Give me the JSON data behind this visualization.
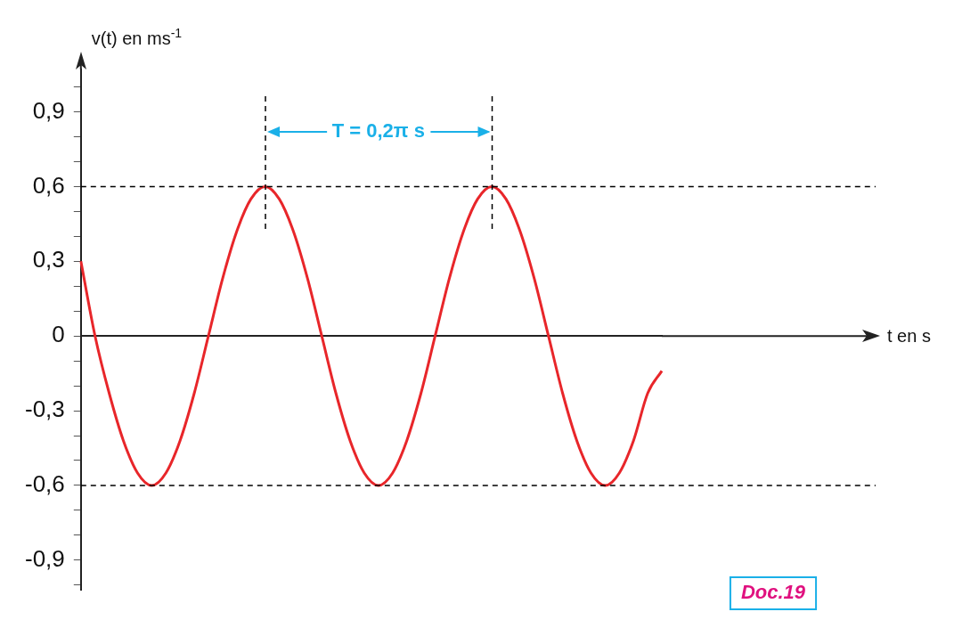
{
  "chart_data": {
    "type": "line",
    "ylabel": "v(t) en ms$^{-1}$",
    "categories": [
      null,
      null,
      null,
      null,
      null,
      null,
      null,
      null,
      null,
      null,
      null,
      null,
      null,
      null,
      null,
      null,
      null,
      null,
      null,
      null,
      null,
      null,
      null,
      null,
      null,
      null,
      null,
      null,
      null,
      null,
      null,
      null,
      null,
      null,
      null,
      null,
      null,
      null,
      null,
      null,
      null,
      null
    ],
    "series": [
      {
        "color": "#e8262a",
        "values": [
          0.3,
          0,
          -0.23,
          -0.42,
          -0.55,
          -0.6,
          -0.55,
          -0.42,
          -0.23,
          0,
          0.23,
          0.42,
          0.55,
          0.6,
          0.55,
          0.42,
          0.23,
          0,
          -0.23,
          -0.42,
          -0.55,
          -0.6,
          -0.55,
          -0.42,
          -0.23,
          0,
          0.23,
          0.42,
          0.55,
          0.6,
          0.55,
          0.42,
          0.23,
          0,
          -0.23,
          -0.42,
          -0.55,
          -0.6,
          -0.55,
          -0.42,
          -0.23,
          -0.14
        ]
      }
    ],
    "ylim": [
      -1.02,
      1.07
    ],
    "yticks": [
      {
        "value": -1.0,
        "label": null
      },
      {
        "value": -0.9,
        "label": "-0,9"
      },
      {
        "value": -0.8,
        "label": null
      },
      {
        "value": -0.7,
        "label": null
      },
      {
        "value": -0.6,
        "label": "-0,6"
      },
      {
        "value": -0.5,
        "label": null
      },
      {
        "value": -0.4,
        "label": null
      },
      {
        "value": -0.3,
        "label": "-0,3"
      },
      {
        "value": -0.2,
        "label": null
      },
      {
        "value": -0.1,
        "label": null
      },
      {
        "value": 0,
        "label": "0"
      },
      {
        "value": 0.1,
        "label": null
      },
      {
        "value": 0.2,
        "label": null
      },
      {
        "value": 0.3,
        "label": "0,3"
      },
      {
        "value": 0.4,
        "label": null
      },
      {
        "value": 0.5,
        "label": null
      },
      {
        "value": 0.6,
        "label": "0,6"
      },
      {
        "value": 0.7,
        "label": null
      },
      {
        "value": 0.8,
        "label": null
      },
      {
        "value": 0.9,
        "label": "0,9"
      },
      {
        "value": 1.0,
        "label": null
      }
    ],
    "tick_labels": "y",
    "grid": false,
    "legend": false,
    "marker": "none",
    "line_style": "solid",
    "ref_lines": [
      {
        "axis": "y",
        "value": 0.6,
        "label": null,
        "color": "#000000",
        "line_style": "dashed"
      },
      {
        "axis": "y",
        "value": -0.6,
        "label": null,
        "color": "#000000",
        "line_style": "dashed"
      }
    ],
    "annotations": [
      "T = 0,2π s",
      "Doc.19",
      "t en s"
    ]
  }
}
